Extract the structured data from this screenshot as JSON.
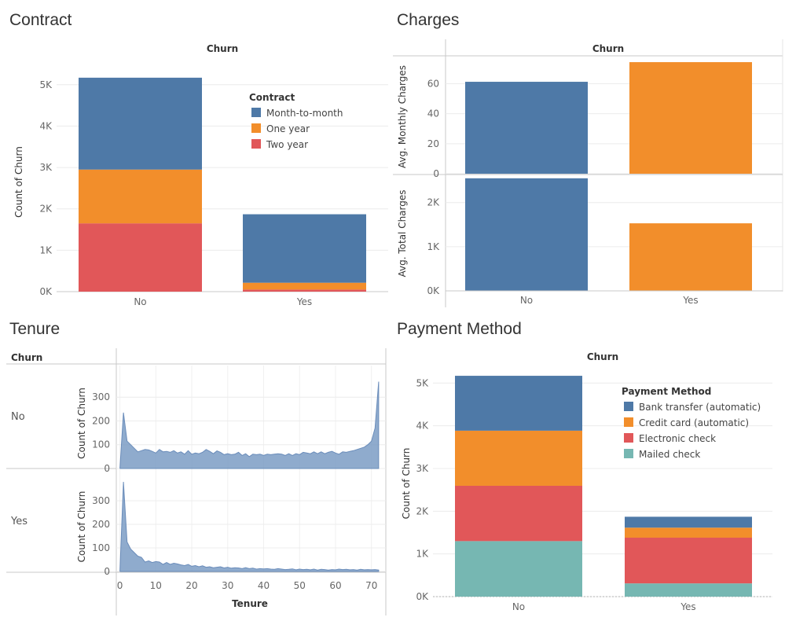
{
  "colors": {
    "blue": "#4e79a7",
    "orange": "#f28e2b",
    "red": "#e15759",
    "teal": "#76b7b2",
    "area": "#7b9cc4"
  },
  "panels": {
    "contract": {
      "title": "Contract"
    },
    "charges": {
      "title": "Charges"
    },
    "tenure": {
      "title": "Tenure"
    },
    "payment": {
      "title": "Payment Method"
    }
  },
  "chart_data": [
    {
      "id": "contract",
      "type": "bar",
      "stacked": true,
      "header": "Churn",
      "categories": [
        "No",
        "Yes"
      ],
      "ylabel": "Count of Churn",
      "xlabel": "",
      "ylim": [
        0,
        5300
      ],
      "yticks": [
        0,
        1000,
        2000,
        3000,
        4000,
        5000
      ],
      "yticklabels": [
        "0K",
        "1K",
        "2K",
        "3K",
        "4K",
        "5K"
      ],
      "legend_title": "Contract",
      "legend_position": "top-right",
      "series": [
        {
          "name": "Two year",
          "color": "#e15759",
          "values": [
            1650,
            50
          ]
        },
        {
          "name": "One year",
          "color": "#f28e2b",
          "values": [
            1300,
            165
          ]
        },
        {
          "name": "Month-to-month",
          "color": "#4e79a7",
          "values": [
            2220,
            1655
          ]
        }
      ],
      "legend_order": [
        "Month-to-month",
        "One year",
        "Two year"
      ],
      "grid": true
    },
    {
      "id": "charges",
      "type": "bar",
      "header": "Churn",
      "categories": [
        "No",
        "Yes"
      ],
      "bar_colors": [
        "#4e79a7",
        "#f28e2b"
      ],
      "panes": [
        {
          "ylabel": "Avg. Monthly Charges",
          "values": [
            61.3,
            74.4
          ],
          "ylim": [
            0,
            76
          ],
          "yticks": [
            0,
            20,
            40,
            60
          ],
          "yticklabels": [
            "0",
            "20",
            "40",
            "60"
          ]
        },
        {
          "ylabel": "Avg. Total Charges",
          "values": [
            2550,
            1530
          ],
          "ylim": [
            0,
            2600
          ],
          "yticks": [
            0,
            1000,
            2000
          ],
          "yticklabels": [
            "0K",
            "1K",
            "2K"
          ]
        }
      ],
      "grid": true
    },
    {
      "id": "tenure",
      "type": "area",
      "row_header": "Churn",
      "xlabel": "Tenure",
      "xlim": [
        -1,
        74
      ],
      "xticks": [
        0,
        10,
        20,
        30,
        40,
        50,
        60,
        70
      ],
      "color": "#7b9cc4",
      "rows": [
        {
          "label": "No",
          "ylabel": "Count of Churn",
          "ylim": [
            0,
            380
          ],
          "yticks": [
            0,
            100,
            200,
            300
          ],
          "x": [
            0,
            1,
            2,
            3,
            4,
            5,
            6,
            7,
            8,
            9,
            10,
            11,
            12,
            13,
            14,
            15,
            16,
            17,
            18,
            19,
            20,
            21,
            22,
            23,
            24,
            25,
            26,
            27,
            28,
            29,
            30,
            31,
            32,
            33,
            34,
            35,
            36,
            37,
            38,
            39,
            40,
            41,
            42,
            43,
            44,
            45,
            46,
            47,
            48,
            49,
            50,
            51,
            52,
            53,
            54,
            55,
            55,
            56,
            57,
            58,
            59,
            60,
            61,
            62,
            63,
            64,
            65,
            66,
            67,
            68,
            69,
            70,
            71,
            72
          ],
          "y": [
            0,
            235,
            115,
            100,
            85,
            70,
            75,
            80,
            78,
            72,
            65,
            80,
            70,
            72,
            68,
            75,
            65,
            70,
            60,
            75,
            60,
            65,
            62,
            68,
            80,
            72,
            62,
            74,
            68,
            58,
            62,
            58,
            60,
            68,
            55,
            62,
            50,
            60,
            58,
            60,
            55,
            60,
            58,
            60,
            62,
            60,
            55,
            62,
            55,
            62,
            58,
            68,
            65,
            62,
            70,
            62,
            62,
            70,
            62,
            68,
            72,
            65,
            60,
            70,
            68,
            72,
            75,
            80,
            85,
            90,
            100,
            115,
            170,
            365
          ]
        },
        {
          "label": "Yes",
          "ylabel": "Count of Churn",
          "ylim": [
            0,
            380
          ],
          "yticks": [
            0,
            100,
            200,
            300
          ],
          "x": [
            0,
            1,
            2,
            3,
            4,
            5,
            6,
            7,
            8,
            9,
            10,
            11,
            12,
            13,
            14,
            15,
            16,
            17,
            18,
            19,
            20,
            21,
            22,
            23,
            24,
            25,
            26,
            27,
            28,
            29,
            30,
            31,
            32,
            33,
            34,
            35,
            36,
            37,
            38,
            39,
            40,
            41,
            42,
            43,
            44,
            45,
            46,
            47,
            48,
            49,
            50,
            51,
            52,
            53,
            54,
            55,
            56,
            57,
            58,
            59,
            60,
            61,
            62,
            63,
            64,
            65,
            66,
            67,
            68,
            69,
            70,
            71,
            72
          ],
          "y": [
            0,
            380,
            125,
            95,
            80,
            65,
            60,
            40,
            45,
            38,
            42,
            40,
            30,
            38,
            30,
            35,
            32,
            28,
            25,
            30,
            22,
            25,
            20,
            24,
            18,
            20,
            16,
            18,
            20,
            15,
            18,
            14,
            16,
            15,
            12,
            16,
            12,
            14,
            10,
            12,
            11,
            12,
            10,
            9,
            12,
            10,
            8,
            9,
            11,
            7,
            10,
            8,
            9,
            7,
            10,
            6,
            9,
            8,
            6,
            8,
            7,
            10,
            8,
            9,
            7,
            8,
            6,
            9,
            7,
            8,
            7,
            8,
            6
          ]
        }
      ],
      "grid": true
    },
    {
      "id": "payment",
      "type": "bar",
      "stacked": true,
      "header": "Churn",
      "categories": [
        "No",
        "Yes"
      ],
      "ylabel": "Count of Churn",
      "xlabel": "",
      "ylim": [
        0,
        5300
      ],
      "yticks": [
        0,
        1000,
        2000,
        3000,
        4000,
        5000
      ],
      "yticklabels": [
        "0K",
        "1K",
        "2K",
        "3K",
        "4K",
        "5K"
      ],
      "legend_title": "Payment Method",
      "legend_position": "top-right",
      "series": [
        {
          "name": "Mailed check",
          "color": "#76b7b2",
          "values": [
            1300,
            310
          ]
        },
        {
          "name": "Electronic check",
          "color": "#e15759",
          "values": [
            1295,
            1070
          ]
        },
        {
          "name": "Credit card (automatic)",
          "color": "#f28e2b",
          "values": [
            1290,
            235
          ]
        },
        {
          "name": "Bank transfer (automatic)",
          "color": "#4e79a7",
          "values": [
            1285,
            255
          ]
        }
      ],
      "legend_order": [
        "Bank transfer (automatic)",
        "Credit card (automatic)",
        "Electronic check",
        "Mailed check"
      ],
      "grid": true
    }
  ]
}
